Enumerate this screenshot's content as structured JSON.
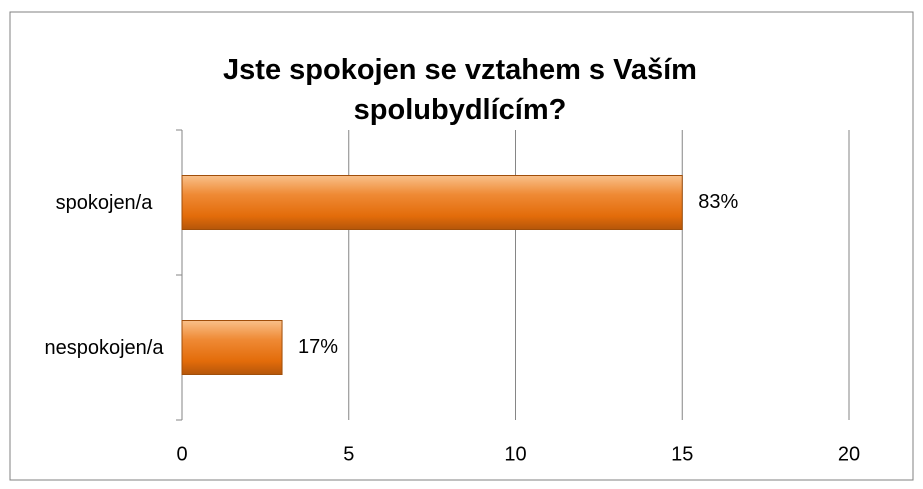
{
  "chart_data": {
    "type": "bar",
    "orientation": "horizontal",
    "title": "Jste spokojen se vztahem s Vaším spolubydlícím?",
    "categories": [
      "spokojen/a",
      "nespokojen/a"
    ],
    "values": [
      15,
      3
    ],
    "value_labels": [
      "83%",
      "17%"
    ],
    "color": "#e36c0a",
    "xlim": [
      0,
      20
    ],
    "xticks": [
      0,
      5,
      10,
      15,
      20
    ],
    "grid": true
  }
}
